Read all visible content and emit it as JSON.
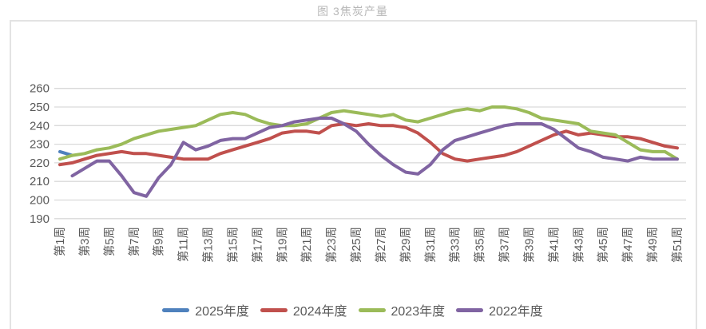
{
  "chart_data": {
    "type": "line",
    "title": "图 3焦炭产量",
    "xlabel": "",
    "ylabel": "",
    "ylim": [
      190,
      260
    ],
    "ytick_step": 10,
    "grid": true,
    "legend_position": "bottom",
    "x_tick_labels": [
      "第1周",
      "第3周",
      "第5周",
      "第7周",
      "第9周",
      "第11周",
      "第13周",
      "第15周",
      "第17周",
      "第19周",
      "第21周",
      "第23周",
      "第25周",
      "第27周",
      "第29周",
      "第31周",
      "第33周",
      "第35周",
      "第37周",
      "第39周",
      "第41周",
      "第43周",
      "第45周",
      "第47周",
      "第49周",
      "第51周"
    ],
    "weeks_count": 51,
    "series": [
      {
        "name": "2025年度",
        "color": "#4F81BD",
        "values": [
          226,
          224,
          null,
          null,
          null,
          null,
          null,
          null,
          null,
          null,
          null,
          null,
          null,
          null,
          null,
          null,
          null,
          null,
          null,
          null,
          null,
          null,
          null,
          null,
          null,
          null,
          null,
          null,
          null,
          null,
          null,
          null,
          null,
          null,
          null,
          null,
          null,
          null,
          null,
          null,
          null,
          null,
          null,
          null,
          null,
          null,
          null,
          null,
          null,
          null,
          null
        ]
      },
      {
        "name": "2024年度",
        "color": "#C0504D",
        "values": [
          219,
          220,
          222,
          224,
          225,
          226,
          225,
          225,
          224,
          223,
          222,
          222,
          222,
          225,
          227,
          229,
          231,
          233,
          236,
          237,
          237,
          236,
          240,
          241,
          240,
          241,
          240,
          240,
          239,
          236,
          231,
          225,
          222,
          221,
          222,
          223,
          224,
          226,
          229,
          232,
          235,
          237,
          235,
          236,
          235,
          234,
          234,
          233,
          231,
          229,
          228
        ]
      },
      {
        "name": "2023年度",
        "color": "#9BBB59",
        "values": [
          222,
          224,
          225,
          227,
          228,
          230,
          233,
          235,
          237,
          238,
          239,
          240,
          243,
          246,
          247,
          246,
          243,
          241,
          240,
          240,
          241,
          244,
          247,
          248,
          247,
          246,
          245,
          246,
          243,
          242,
          244,
          246,
          248,
          249,
          248,
          250,
          250,
          249,
          247,
          244,
          243,
          242,
          241,
          237,
          236,
          235,
          231,
          227,
          226,
          226,
          222
        ]
      },
      {
        "name": "2022年度",
        "color": "#8064A2",
        "values": [
          null,
          213,
          217,
          221,
          221,
          213,
          204,
          202,
          212,
          219,
          231,
          227,
          229,
          232,
          233,
          233,
          236,
          239,
          240,
          242,
          243,
          244,
          244,
          241,
          237,
          230,
          224,
          219,
          215,
          214,
          219,
          227,
          232,
          234,
          236,
          238,
          240,
          241,
          241,
          241,
          238,
          233,
          228,
          226,
          223,
          222,
          221,
          223,
          222,
          222,
          222
        ]
      }
    ],
    "colors": {
      "grid": "#d9d9d9",
      "axis_text": "#595959",
      "title_text": "#b7b7b7",
      "frame_border": "#e3e3e3",
      "background": "#ffffff"
    }
  }
}
